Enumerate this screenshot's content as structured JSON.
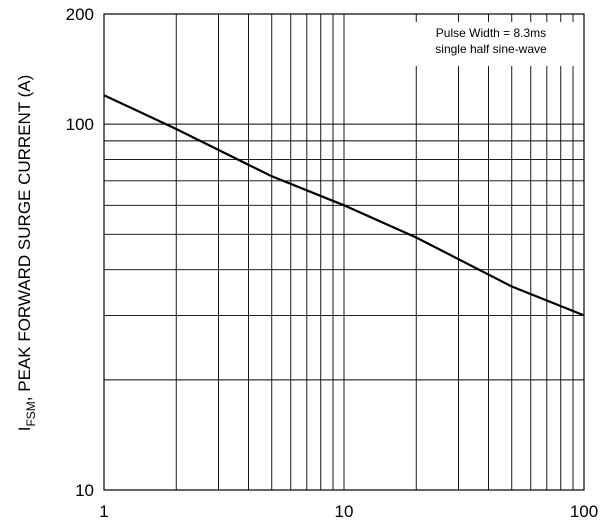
{
  "chart_data": {
    "type": "line",
    "x_scale": "log",
    "y_scale": "log",
    "xlim": [
      1,
      100
    ],
    "ylim": [
      10,
      200
    ],
    "grid": true,
    "xticks": [
      {
        "value": 1,
        "label": "1"
      },
      {
        "value": 10,
        "label": "10"
      },
      {
        "value": 100,
        "label": "100"
      }
    ],
    "yticks": [
      {
        "value": 10,
        "label": "10"
      },
      {
        "value": 100,
        "label": "100"
      },
      {
        "value": 200,
        "label": "200"
      }
    ],
    "ylabel_main": "I",
    "ylabel_sub": "FSM",
    "ylabel_rest": ", PEAK FORWARD SURGE CURRENT (A)",
    "annotation": [
      "Pulse Width = 8.3ms",
      "single half sine-wave"
    ],
    "series": [
      {
        "x": [
          1,
          2,
          5,
          10,
          20,
          50,
          100
        ],
        "y": [
          120,
          97,
          72,
          60,
          49,
          36,
          30
        ]
      }
    ],
    "colors": {
      "line": "#000000",
      "grid": "#000000"
    }
  }
}
